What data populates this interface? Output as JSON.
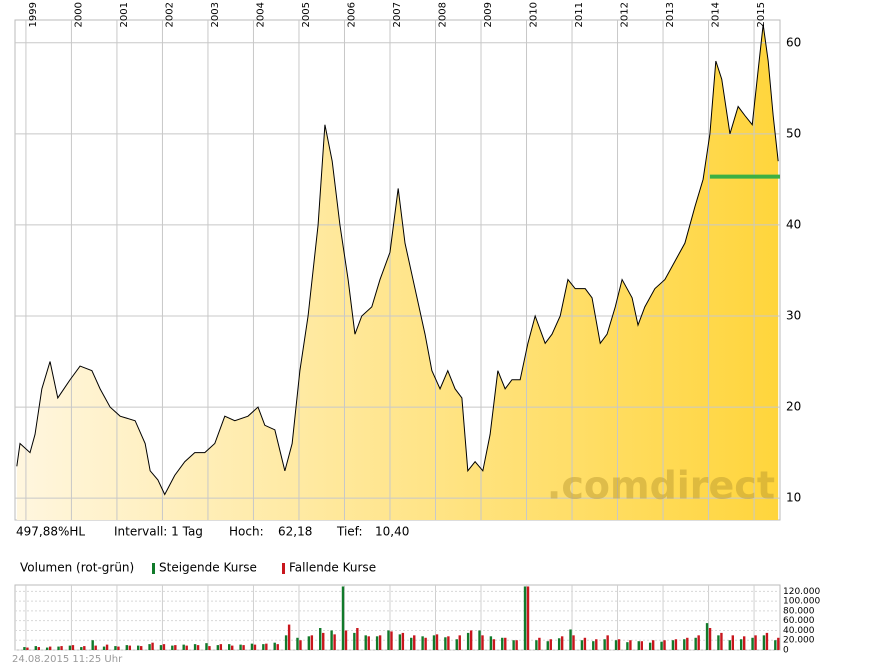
{
  "chart_data": [
    {
      "type": "line",
      "x": [
        1998.8,
        1998.87,
        1999.09,
        1999.2,
        1999.35,
        1999.53,
        1999.7,
        1999.97,
        2000.19,
        2000.45,
        2000.63,
        2000.85,
        2001.07,
        2001.4,
        2001.62,
        2001.73,
        2001.9,
        2002.05,
        2002.27,
        2002.49,
        2002.71,
        2002.93,
        2003.15,
        2003.37,
        2003.59,
        2003.88,
        2004.1,
        2004.25,
        2004.47,
        2004.69,
        2004.85,
        2005.02,
        2005.2,
        2005.42,
        2005.57,
        2005.73,
        2005.9,
        2006.08,
        2006.23,
        2006.38,
        2006.6,
        2006.78,
        2007.0,
        2007.18,
        2007.33,
        2007.55,
        2007.77,
        2007.92,
        2008.1,
        2008.27,
        2008.43,
        2008.58,
        2008.71,
        2008.87,
        2009.04,
        2009.2,
        2009.37,
        2009.53,
        2009.68,
        2009.86,
        2010.03,
        2010.19,
        2010.41,
        2010.56,
        2010.74,
        2010.91,
        2011.07,
        2011.29,
        2011.44,
        2011.62,
        2011.77,
        2011.95,
        2012.1,
        2012.32,
        2012.45,
        2012.6,
        2012.82,
        2013.04,
        2013.26,
        2013.48,
        2013.7,
        2013.88,
        2014.03,
        2014.16,
        2014.29,
        2014.47,
        2014.65,
        2014.8,
        2014.96,
        2015.09,
        2015.2,
        2015.31,
        2015.42,
        2015.53
      ],
      "values": [
        13.5,
        16,
        15,
        17,
        22,
        25,
        21,
        23,
        24.5,
        24,
        22,
        20,
        19,
        18.5,
        16,
        13,
        12,
        10.4,
        12.5,
        14,
        15,
        15,
        16,
        19,
        18.5,
        19,
        20,
        18,
        17.5,
        13,
        16,
        24,
        30,
        40,
        51,
        47,
        40,
        34,
        28,
        30,
        31,
        34,
        37,
        44,
        38,
        33,
        28,
        24,
        22,
        24,
        22,
        21,
        13,
        14,
        13,
        17,
        24,
        22,
        23,
        23,
        27,
        30,
        27,
        28,
        30,
        34,
        33,
        33,
        32,
        27,
        28,
        31,
        34,
        32,
        29,
        31,
        33,
        34,
        36,
        38,
        42,
        45,
        50,
        58,
        56,
        50,
        53,
        52,
        51,
        57,
        62,
        58,
        52,
        47
      ],
      "color": "#000000",
      "fill_gradient": [
        "#fff6df",
        "#ffd53c"
      ],
      "xlim": [
        1998.76,
        2015.57
      ],
      "ylim": [
        7.6,
        62.5
      ],
      "xticks": [
        1999,
        2000,
        2001,
        2002,
        2003,
        2004,
        2005,
        2006,
        2007,
        2008,
        2009,
        2010,
        2011,
        2012,
        2013,
        2014,
        2015
      ],
      "yticks": [
        10,
        20,
        30,
        40,
        50,
        60
      ],
      "grid": true,
      "support_line": {
        "value": 45.3,
        "x": [
          2014.03,
          2015.57
        ],
        "color": "#3cb043"
      },
      "watermark": ".comdirect",
      "stats": {
        "change": "497,88%HL",
        "interval": "Intervall: 1 Tag",
        "high_label": "Hoch:",
        "high": "62,18",
        "low_label": "Tief:",
        "low": "10,40"
      }
    },
    {
      "type": "bar",
      "title": "Volumen (rot-grün)",
      "x": [
        1999.0,
        1999.25,
        1999.5,
        1999.75,
        2000.0,
        2000.25,
        2000.5,
        2000.75,
        2001.0,
        2001.25,
        2001.5,
        2001.75,
        2002.0,
        2002.25,
        2002.5,
        2002.75,
        2003.0,
        2003.25,
        2003.5,
        2003.75,
        2004.0,
        2004.25,
        2004.5,
        2004.75,
        2005.0,
        2005.25,
        2005.5,
        2005.75,
        2006.0,
        2006.25,
        2006.5,
        2006.75,
        2007.0,
        2007.25,
        2007.5,
        2007.75,
        2008.0,
        2008.25,
        2008.5,
        2008.75,
        2009.0,
        2009.25,
        2009.5,
        2009.75,
        2010.0,
        2010.25,
        2010.5,
        2010.75,
        2011.0,
        2011.25,
        2011.5,
        2011.75,
        2012.0,
        2012.25,
        2012.5,
        2012.75,
        2013.0,
        2013.25,
        2013.5,
        2013.75,
        2014.0,
        2014.25,
        2014.5,
        2014.75,
        2015.0,
        2015.25,
        2015.5
      ],
      "series": [
        {
          "name": "Steigende Kurse",
          "color": "#117a2a",
          "values": [
            6000,
            8000,
            5000,
            7000,
            9000,
            6000,
            20000,
            7000,
            8000,
            10000,
            9000,
            12000,
            10000,
            9000,
            11000,
            12000,
            14000,
            10000,
            12000,
            11000,
            13000,
            12000,
            15000,
            30000,
            25000,
            28000,
            45000,
            40000,
            130000,
            35000,
            30000,
            28000,
            40000,
            32000,
            25000,
            28000,
            30000,
            26000,
            22000,
            35000,
            40000,
            28000,
            25000,
            20000,
            130000,
            20000,
            18000,
            24000,
            42000,
            20000,
            18000,
            22000,
            20000,
            16000,
            18000,
            15000,
            17000,
            20000,
            22000,
            25000,
            55000,
            30000,
            20000,
            22000,
            25000,
            30000,
            20000
          ]
        },
        {
          "name": "Fallende Kurse",
          "color": "#c8161d",
          "values": [
            5000,
            6000,
            7000,
            8000,
            10000,
            8000,
            9000,
            11000,
            7000,
            9000,
            8000,
            15000,
            12000,
            10000,
            9000,
            10000,
            8000,
            12000,
            9000,
            10000,
            11000,
            13000,
            12000,
            52000,
            20000,
            30000,
            35000,
            32000,
            40000,
            45000,
            28000,
            30000,
            38000,
            35000,
            30000,
            25000,
            32000,
            28000,
            30000,
            40000,
            30000,
            22000,
            25000,
            20000,
            130000,
            25000,
            22000,
            28000,
            30000,
            25000,
            22000,
            30000,
            22000,
            20000,
            18000,
            20000,
            20000,
            22000,
            25000,
            30000,
            45000,
            35000,
            30000,
            28000,
            30000,
            35000,
            25000
          ]
        }
      ],
      "xlim": [
        1998.76,
        2015.57
      ],
      "ylim": [
        0,
        133000
      ],
      "xticks": [
        1999,
        2000,
        2001,
        2002,
        2003,
        2004,
        2005,
        2006,
        2007,
        2008,
        2009,
        2010,
        2011,
        2012,
        2013,
        2014,
        2015
      ],
      "yticks": [
        0,
        {
          "value": 20000,
          "label": "20.000"
        },
        {
          "value": 40000,
          "label": "40.000"
        },
        {
          "value": 60000,
          "label": "60.000"
        },
        {
          "value": 80000,
          "label": "80.000"
        },
        {
          "value": 100000,
          "label": "100.000"
        },
        {
          "value": 120000,
          "label": "120.000"
        }
      ],
      "grid": true
    }
  ],
  "footer": "24.08.2015 11:25 Uhr"
}
